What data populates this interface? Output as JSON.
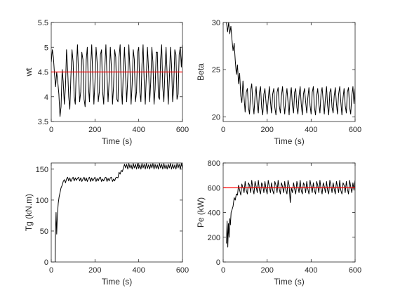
{
  "chart_data": [
    {
      "type": "line",
      "xlabel": "Time (s)",
      "ylabel": "wt",
      "xlim": [
        0,
        600
      ],
      "ylim": [
        3.5,
        5.5
      ],
      "xticks": [
        0,
        200,
        400,
        600
      ],
      "yticks": [
        3.5,
        4,
        4.5,
        5,
        5.5
      ],
      "ytick_labels": [
        "3.5",
        "4",
        "4.5",
        "5",
        "5.5"
      ],
      "reference_line": {
        "y": 4.5,
        "color": "#ff0000"
      },
      "series": [
        {
          "color": "#000000",
          "x": [
            0,
            5,
            10,
            15,
            20,
            25,
            30,
            35,
            40,
            45,
            50,
            55,
            60,
            65,
            70,
            75,
            80,
            85,
            90,
            95,
            100,
            105,
            110,
            115,
            120,
            125,
            130,
            135,
            140,
            145,
            150,
            155,
            160,
            165,
            170,
            175,
            180,
            185,
            190,
            195,
            200,
            205,
            210,
            215,
            220,
            225,
            230,
            235,
            240,
            245,
            250,
            255,
            260,
            265,
            270,
            275,
            280,
            285,
            290,
            295,
            300,
            305,
            310,
            315,
            320,
            325,
            330,
            335,
            340,
            345,
            350,
            355,
            360,
            365,
            370,
            375,
            380,
            385,
            390,
            395,
            400,
            405,
            410,
            415,
            420,
            425,
            430,
            435,
            440,
            445,
            450,
            455,
            460,
            465,
            470,
            475,
            480,
            485,
            490,
            495,
            500,
            505,
            510,
            515,
            520,
            525,
            530,
            535,
            540,
            545,
            550,
            555,
            560,
            565,
            570,
            575,
            580,
            585,
            590,
            595,
            600
          ],
          "y": [
            4.7,
            4.95,
            4.8,
            4.45,
            4.2,
            4.5,
            4.3,
            4.05,
            3.6,
            3.8,
            4.55,
            4.3,
            3.85,
            4.2,
            4.95,
            4.55,
            4.0,
            3.75,
            4.4,
            4.95,
            4.7,
            4.0,
            3.85,
            4.6,
            5.05,
            4.45,
            3.9,
            4.1,
            4.9,
            4.75,
            3.95,
            3.8,
            4.75,
            5.0,
            4.2,
            3.9,
            4.6,
            5.05,
            4.4,
            3.85,
            4.3,
            5.0,
            4.7,
            3.9,
            4.1,
            4.85,
            4.95,
            4.1,
            3.85,
            4.6,
            5.05,
            4.4,
            3.9,
            4.35,
            5.0,
            4.6,
            3.85,
            4.2,
            4.95,
            4.8,
            3.95,
            3.9,
            4.8,
            5.05,
            4.2,
            3.85,
            4.6,
            5.0,
            4.4,
            3.9,
            4.4,
            5.05,
            4.55,
            3.85,
            4.25,
            4.95,
            4.75,
            3.9,
            4.1,
            4.9,
            5.0,
            4.1,
            3.9,
            4.65,
            5.05,
            4.3,
            3.85,
            4.45,
            5.0,
            4.55,
            3.9,
            4.3,
            5.0,
            4.7,
            3.85,
            4.15,
            4.9,
            4.9,
            4.0,
            3.95,
            4.75,
            5.05,
            4.2,
            3.9,
            4.55,
            5.0,
            4.45,
            3.85,
            4.35,
            5.0,
            4.65,
            3.9,
            4.2,
            4.95,
            4.85,
            3.95,
            4.05,
            4.85,
            5.0,
            4.6,
            5.05
          ]
        }
      ]
    },
    {
      "type": "line",
      "xlabel": "Time (s)",
      "ylabel": "Beta",
      "xlim": [
        0,
        600
      ],
      "ylim": [
        19.5,
        30
      ],
      "xticks": [
        0,
        200,
        400,
        600
      ],
      "yticks": [
        20,
        25,
        30
      ],
      "ytick_labels": [
        "20",
        "25",
        "30"
      ],
      "series": [
        {
          "color": "#000000",
          "x": [
            15,
            20,
            25,
            30,
            35,
            40,
            45,
            50,
            55,
            60,
            65,
            70,
            75,
            80,
            85,
            90,
            95,
            100,
            105,
            110,
            115,
            120,
            125,
            130,
            135,
            140,
            145,
            150,
            155,
            160,
            165,
            170,
            175,
            180,
            185,
            190,
            195,
            200,
            205,
            210,
            215,
            220,
            225,
            230,
            235,
            240,
            245,
            250,
            255,
            260,
            265,
            270,
            275,
            280,
            285,
            290,
            295,
            300,
            305,
            310,
            315,
            320,
            325,
            330,
            335,
            340,
            345,
            350,
            355,
            360,
            365,
            370,
            375,
            380,
            385,
            390,
            395,
            400,
            405,
            410,
            415,
            420,
            425,
            430,
            435,
            440,
            445,
            450,
            455,
            460,
            465,
            470,
            475,
            480,
            485,
            490,
            495,
            500,
            505,
            510,
            515,
            520,
            525,
            530,
            535,
            540,
            545,
            550,
            555,
            560,
            565,
            570,
            575,
            580,
            585,
            590,
            595,
            600
          ],
          "y": [
            30,
            29.0,
            30,
            28.8,
            29.6,
            28.2,
            27.0,
            27.8,
            26.0,
            24.5,
            25.5,
            23.5,
            24.6,
            22.2,
            21.5,
            23.8,
            22.0,
            20.5,
            22.6,
            23.0,
            21.0,
            20.3,
            22.8,
            23.5,
            21.4,
            20.3,
            22.2,
            23.2,
            21.2,
            20.4,
            22.6,
            23.2,
            21.0,
            20.2,
            22.4,
            23.0,
            21.5,
            20.3,
            21.8,
            23.2,
            21.6,
            20.4,
            22.4,
            23.0,
            21.0,
            20.2,
            22.6,
            23.1,
            21.2,
            20.4,
            22.2,
            23.2,
            21.4,
            20.3,
            22.0,
            23.0,
            21.6,
            20.2,
            22.4,
            23.1,
            21.2,
            20.4,
            22.6,
            23.0,
            21.0,
            20.3,
            22.2,
            23.2,
            21.4,
            20.2,
            22.4,
            23.0,
            21.6,
            20.4,
            22.0,
            23.1,
            21.2,
            20.3,
            22.6,
            23.2,
            21.0,
            20.2,
            22.2,
            23.0,
            21.4,
            20.4,
            22.4,
            23.1,
            21.6,
            20.3,
            22.0,
            23.2,
            21.2,
            20.2,
            22.6,
            23.0,
            21.0,
            20.4,
            22.2,
            23.1,
            21.4,
            20.3,
            22.4,
            23.2,
            21.6,
            20.2,
            22.0,
            23.0,
            21.2,
            20.4,
            22.6,
            23.1,
            21.0,
            20.3,
            22.2,
            23.2,
            21.4,
            23.0
          ]
        }
      ]
    },
    {
      "type": "line",
      "xlabel": "Time (s)",
      "ylabel": "Tg (kN.m)",
      "xlim": [
        0,
        600
      ],
      "ylim": [
        0,
        160
      ],
      "xticks": [
        0,
        200,
        400,
        600
      ],
      "yticks": [
        0,
        50,
        100,
        150
      ],
      "ytick_labels": [
        "0",
        "50",
        "100",
        "150"
      ],
      "series": [
        {
          "color": "#000000",
          "x": [
            15,
            18,
            19,
            22,
            25,
            28,
            32,
            36,
            40,
            45,
            50,
            55,
            60,
            65,
            70,
            75,
            80,
            85,
            90,
            95,
            100,
            105,
            110,
            115,
            120,
            125,
            130,
            135,
            140,
            145,
            150,
            155,
            160,
            165,
            170,
            175,
            180,
            185,
            190,
            195,
            200,
            205,
            210,
            215,
            220,
            225,
            230,
            235,
            240,
            245,
            250,
            255,
            260,
            265,
            270,
            275,
            280,
            285,
            290,
            295,
            300,
            305,
            310,
            315,
            320,
            325,
            330,
            335,
            340,
            345,
            350,
            355,
            360,
            365,
            370,
            375,
            380,
            385,
            390,
            395,
            400,
            405,
            410,
            415,
            420,
            425,
            430,
            435,
            440,
            445,
            450,
            455,
            460,
            465,
            470,
            475,
            480,
            485,
            490,
            495,
            500,
            505,
            510,
            515,
            520,
            525,
            530,
            535,
            540,
            545,
            550,
            555,
            560,
            565,
            570,
            575,
            580,
            585,
            590,
            595,
            600
          ],
          "y": [
            0,
            0,
            40,
            80,
            45,
            75,
            95,
            105,
            112,
            120,
            124,
            130,
            133,
            128,
            134,
            137,
            131,
            136,
            130,
            134,
            137,
            131,
            136,
            132,
            135,
            137,
            131,
            136,
            130,
            134,
            137,
            131,
            136,
            130,
            135,
            137,
            130,
            136,
            131,
            134,
            137,
            130,
            135,
            131,
            136,
            137,
            130,
            134,
            131,
            136,
            137,
            130,
            135,
            131,
            136,
            137,
            130,
            134,
            131,
            136,
            137,
            136,
            145,
            142,
            148,
            146,
            152,
            158,
            152,
            158,
            150,
            159,
            152,
            157,
            150,
            159,
            152,
            158,
            150,
            159,
            151,
            157,
            150,
            159,
            152,
            158,
            150,
            159,
            151,
            157,
            150,
            158,
            152,
            159,
            150,
            158,
            151,
            157,
            150,
            159,
            152,
            158,
            150,
            159,
            151,
            157,
            150,
            158,
            152,
            159,
            150,
            158,
            151,
            157,
            150,
            159,
            152,
            158,
            150,
            159,
            151
          ]
        }
      ]
    },
    {
      "type": "line",
      "xlabel": "Time (s)",
      "ylabel": "Pe (kW)",
      "xlim": [
        0,
        600
      ],
      "ylim": [
        0,
        800
      ],
      "xticks": [
        0,
        200,
        400,
        600
      ],
      "yticks": [
        0,
        200,
        400,
        600,
        800
      ],
      "ytick_labels": [
        "0",
        "200",
        "400",
        "600",
        "800"
      ],
      "reference_line": {
        "y": 600,
        "color": "#ff0000"
      },
      "series": [
        {
          "color": "#000000",
          "x": [
            15,
            18,
            21,
            24,
            27,
            30,
            33,
            36,
            40,
            45,
            50,
            55,
            60,
            65,
            70,
            75,
            80,
            85,
            90,
            95,
            100,
            105,
            110,
            115,
            120,
            125,
            130,
            135,
            140,
            145,
            150,
            155,
            160,
            165,
            170,
            175,
            180,
            185,
            190,
            195,
            200,
            205,
            210,
            215,
            220,
            225,
            230,
            235,
            240,
            245,
            250,
            255,
            260,
            265,
            270,
            275,
            280,
            285,
            290,
            295,
            300,
            305,
            310,
            315,
            320,
            325,
            330,
            335,
            340,
            345,
            350,
            355,
            360,
            365,
            370,
            375,
            380,
            385,
            390,
            395,
            400,
            405,
            410,
            415,
            420,
            425,
            430,
            435,
            440,
            445,
            450,
            455,
            460,
            465,
            470,
            475,
            480,
            485,
            490,
            495,
            500,
            505,
            510,
            515,
            520,
            525,
            530,
            535,
            540,
            545,
            550,
            555,
            560,
            565,
            570,
            575,
            580,
            585,
            590,
            595,
            600
          ],
          "y": [
            150,
            330,
            120,
            310,
            200,
            350,
            300,
            400,
            420,
            450,
            520,
            500,
            550,
            540,
            620,
            580,
            540,
            630,
            600,
            560,
            650,
            580,
            550,
            640,
            620,
            560,
            660,
            590,
            550,
            650,
            610,
            560,
            660,
            580,
            550,
            640,
            620,
            560,
            650,
            590,
            550,
            660,
            610,
            560,
            640,
            580,
            550,
            650,
            620,
            560,
            660,
            590,
            550,
            640,
            610,
            560,
            650,
            580,
            550,
            660,
            620,
            480,
            600,
            560,
            640,
            590,
            550,
            650,
            610,
            560,
            660,
            580,
            550,
            640,
            620,
            560,
            650,
            590,
            550,
            660,
            610,
            560,
            640,
            580,
            550,
            650,
            620,
            560,
            660,
            590,
            550,
            640,
            610,
            560,
            650,
            580,
            550,
            660,
            620,
            560,
            640,
            590,
            550,
            650,
            610,
            560,
            660,
            580,
            550,
            640,
            620,
            560,
            650,
            590,
            550,
            660,
            610,
            560,
            640,
            580,
            660
          ]
        }
      ]
    }
  ]
}
